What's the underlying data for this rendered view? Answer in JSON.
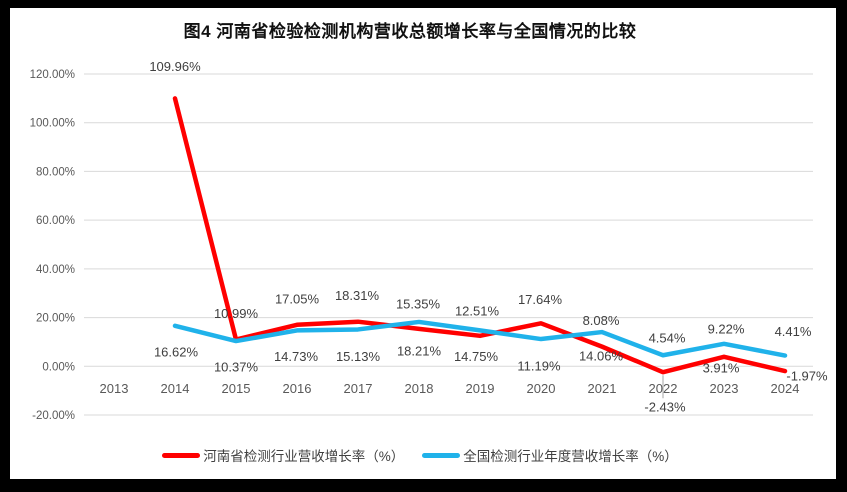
{
  "chart_data": {
    "type": "line",
    "title": "图4  河南省检验检测机构营收总额增长率与全国情况的比较",
    "categories": [
      "2013",
      "2014",
      "2015",
      "2016",
      "2017",
      "2018",
      "2019",
      "2020",
      "2021",
      "2022",
      "2023",
      "2024"
    ],
    "y_ticks": [
      "120.00%",
      "100.00%",
      "80.00%",
      "60.00%",
      "40.00%",
      "20.00%",
      "0.00%",
      "-20.00%"
    ],
    "ylim": [
      -20,
      120
    ],
    "grid": true,
    "legend_position": "bottom",
    "colors": {
      "henan_red": "#FF0000",
      "national_blue": "#20B2EA",
      "gridline": "#D9D9D9",
      "axis_text": "#595959",
      "label_text": "#404040"
    },
    "series": [
      {
        "name": "河南省检测行业营收增长率（%）",
        "color": "#FF0000",
        "values": [
          null,
          109.96,
          10.99,
          17.05,
          18.31,
          15.35,
          12.51,
          17.64,
          8.08,
          -2.43,
          3.91,
          -1.97
        ],
        "labels": [
          null,
          "109.96%",
          "10.99%",
          "17.05%",
          "18.31%",
          "15.35%",
          "12.51%",
          "17.64%",
          "8.08%",
          "-2.43%",
          "3.91%",
          "-1.97%"
        ]
      },
      {
        "name": "全国检测行业年度营收增长率（%）",
        "color": "#20B2EA",
        "values": [
          null,
          16.62,
          10.37,
          14.73,
          15.13,
          18.21,
          14.75,
          11.19,
          14.06,
          4.54,
          9.22,
          4.41
        ],
        "labels": [
          null,
          "16.62%",
          "10.37%",
          "14.73%",
          "15.13%",
          "18.21%",
          "14.75%",
          "11.19%",
          "14.06%",
          "4.54%",
          "9.22%",
          "4.41%"
        ]
      }
    ]
  }
}
